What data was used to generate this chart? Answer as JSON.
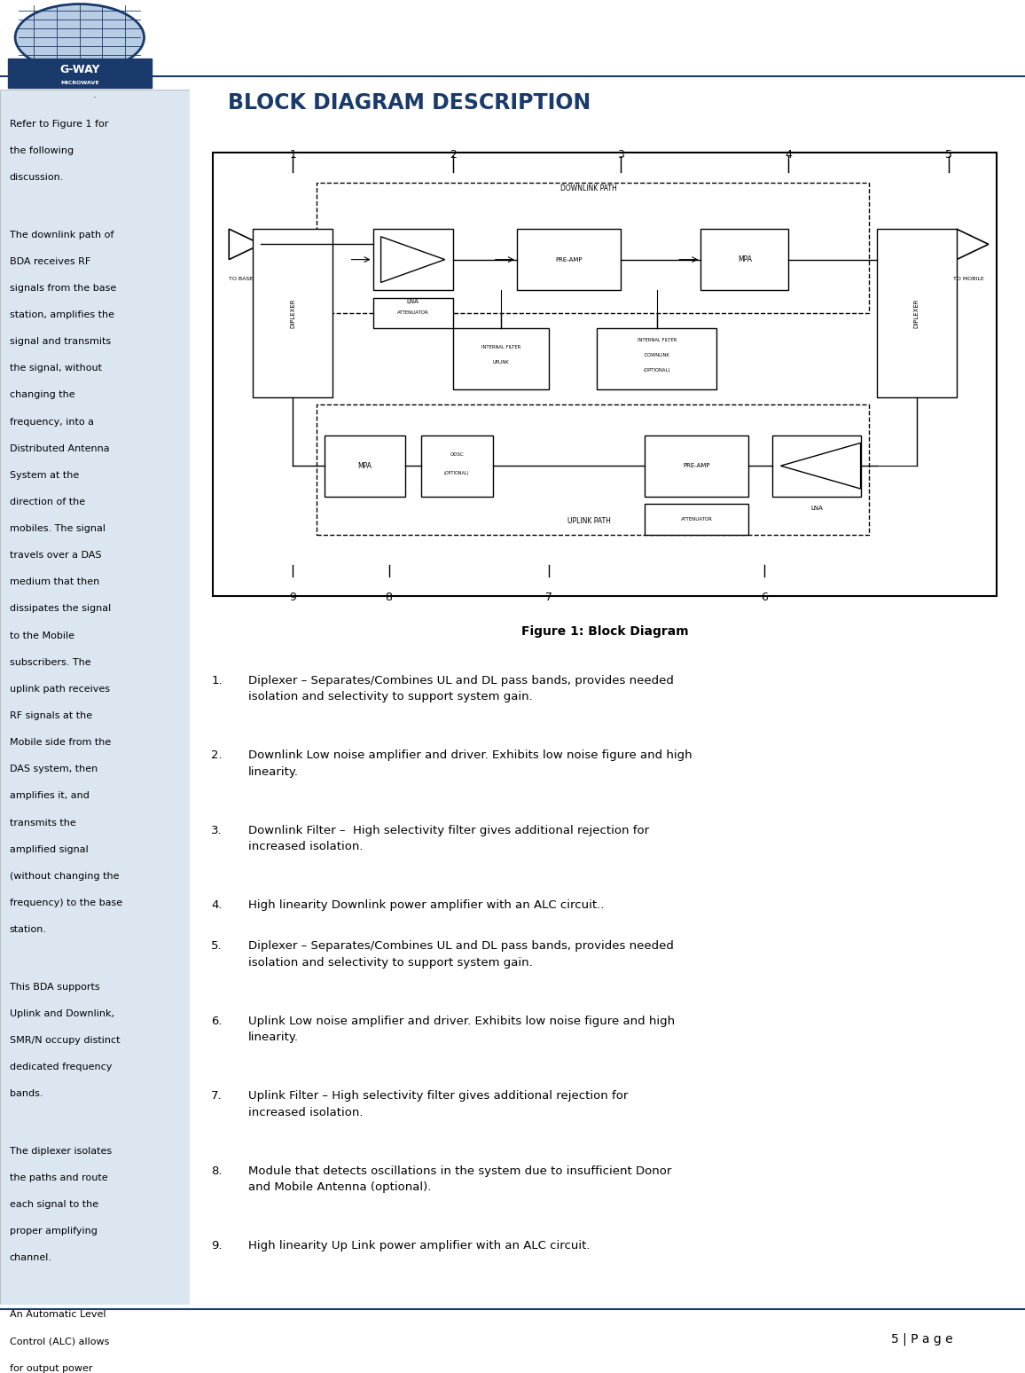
{
  "title": "BLOCK DIAGRAM DESCRIPTION",
  "title_color": "#1a3a6b",
  "figure_caption": "Figure 1: Block Diagram",
  "left_panel_bg": "#dce6f1",
  "left_panel_paragraphs": [
    "Refer to Figure 1 for the following discussion.",
    "The downlink path of BDA receives RF signals from the base station, amplifies the signal and transmits the signal, without changing the frequency, into a Distributed Antenna System at the direction of the mobiles. The signal travels over a DAS medium that then dissipates the signal to the Mobile subscribers. The uplink path receives RF signals at the Mobile side from the DAS system, then amplifies it, and transmits the amplified signal (without changing the frequency) to the base station.",
    "This BDA supports Uplink and Downlink, SMR/N occupy distinct dedicated frequency bands.",
    "The diplexer isolates the paths and route each signal to the proper amplifying channel.",
    "An Automatic Level Control (ALC) allows for output power limiting. A variable step attenuator gives 0 – 30 dB of attenuation in 2 dB steps. The use of these controls is covered in the “OPERATION” section, later in this document."
  ],
  "numbered_items": [
    "Diplexer – Separates/Combines UL and DL pass bands, provides needed isolation and selectivity to support system gain.",
    "Downlink Low noise amplifier and driver. Exhibits low noise figure and high linearity.",
    "Downlink Filter –  High selectivity filter gives additional rejection for increased isolation.",
    "High linearity Downlink power amplifier with an ALC circuit..",
    "Diplexer – Separates/Combines UL and DL pass bands, provides needed isolation and selectivity to support system gain.",
    "Uplink Low noise amplifier and driver. Exhibits low noise figure and high linearity.",
    "Uplink Filter – High selectivity filter gives additional rejection for increased isolation.",
    "Module that detects oscillations in the system due to insufficient Donor and Mobile Antenna (optional).",
    "High linearity Up Link power amplifier with an ALC circuit."
  ],
  "page_number": "5 | P a g e",
  "dot_text": ".",
  "diagram_bg": "#ffffff",
  "diagram_border": "#000000",
  "logo_globe_color": "#b8cce4",
  "logo_dark_color": "#1a3a6b",
  "separator_color": "#1a3a6b"
}
